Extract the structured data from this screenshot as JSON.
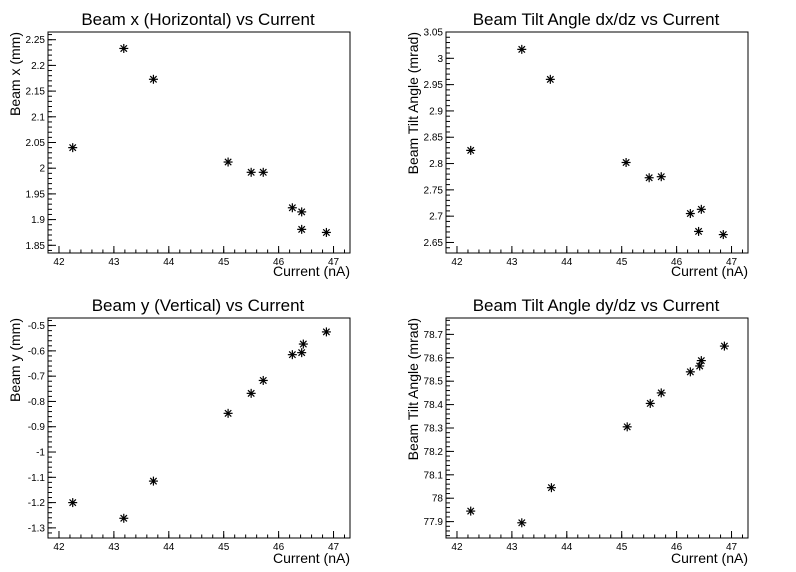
{
  "chart_data": [
    {
      "type": "scatter",
      "title": "Beam x (Horizontal) vs Current",
      "xlabel": "Current (nA)",
      "ylabel": "Beam x (mm)",
      "xlim": [
        41.8,
        47.3
      ],
      "ylim": [
        1.835,
        2.265
      ],
      "xticks": [
        "42",
        "43",
        "44",
        "45",
        "46",
        "47"
      ],
      "yticks": [
        "1.85",
        "1.9",
        "1.95",
        "2",
        "2.05",
        "2.1",
        "2.15",
        "2.2",
        "2.25"
      ],
      "x": [
        42.25,
        43.18,
        43.72,
        45.08,
        45.5,
        45.72,
        46.25,
        46.42,
        46.42,
        46.87
      ],
      "y": [
        2.04,
        2.233,
        2.173,
        2.012,
        1.992,
        1.992,
        1.923,
        1.915,
        1.881,
        1.875
      ]
    },
    {
      "type": "scatter",
      "title": "Beam Tilt Angle dx/dz vs Current",
      "xlabel": "Current (nA)",
      "ylabel": "Beam Tilt Angle (mrad)",
      "xlim": [
        41.8,
        47.3
      ],
      "ylim": [
        2.63,
        3.05
      ],
      "xticks": [
        "42",
        "43",
        "44",
        "45",
        "46",
        "47"
      ],
      "yticks": [
        "2.65",
        "2.7",
        "2.75",
        "2.8",
        "2.85",
        "2.9",
        "2.95",
        "3",
        "3.05"
      ],
      "x": [
        42.25,
        43.18,
        43.7,
        45.08,
        45.5,
        45.72,
        46.25,
        46.45,
        46.4,
        46.85
      ],
      "y": [
        2.825,
        3.017,
        2.96,
        2.802,
        2.773,
        2.775,
        2.705,
        2.713,
        2.671,
        2.665
      ]
    },
    {
      "type": "scatter",
      "title": "Beam y (Vertical) vs Current",
      "xlabel": "Current (nA)",
      "ylabel": "Beam y (mm)",
      "xlim": [
        41.8,
        47.3
      ],
      "ylim": [
        -1.34,
        -0.47
      ],
      "xticks": [
        "42",
        "43",
        "44",
        "45",
        "46",
        "47"
      ],
      "yticks": [
        "-1.3",
        "-1.2",
        "-1.1",
        "-1",
        "-0.9",
        "-0.8",
        "-0.7",
        "-0.6",
        "-0.5"
      ],
      "x": [
        42.25,
        43.18,
        43.72,
        45.08,
        45.5,
        45.72,
        46.25,
        46.42,
        46.45,
        46.87
      ],
      "y": [
        -1.2,
        -1.262,
        -1.115,
        -0.847,
        -0.768,
        -0.717,
        -0.615,
        -0.607,
        -0.573,
        -0.525
      ]
    },
    {
      "type": "scatter",
      "title": "Beam Tilt Angle dy/dz vs Current",
      "xlabel": "Current (nA)",
      "ylabel": "Beam Tilt Angle (mrad)",
      "xlim": [
        41.8,
        47.3
      ],
      "ylim": [
        77.83,
        78.77
      ],
      "xticks": [
        "42",
        "43",
        "44",
        "45",
        "46",
        "47"
      ],
      "yticks": [
        "77.9",
        "78",
        "78.1",
        "78.2",
        "78.3",
        "78.4",
        "78.5",
        "78.6",
        "78.7"
      ],
      "x": [
        42.25,
        43.18,
        43.72,
        45.1,
        45.52,
        45.72,
        46.25,
        46.42,
        46.45,
        46.87
      ],
      "y": [
        77.945,
        77.895,
        78.045,
        78.305,
        78.405,
        78.45,
        78.54,
        78.565,
        78.588,
        78.65
      ]
    }
  ]
}
